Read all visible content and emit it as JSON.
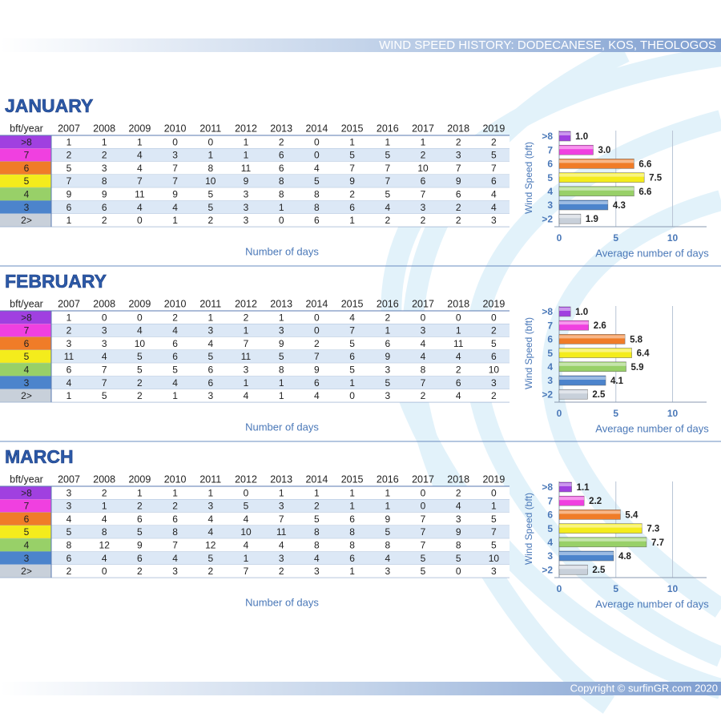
{
  "header": {
    "title": "WIND SPEED HISTORY: DODECANESE, KOS, THEOLOGOS"
  },
  "months": [
    {
      "title": "JANUARY",
      "caption": "Number of days",
      "table": {
        "header": [
          "bft/year",
          "2007",
          "2008",
          "2009",
          "2010",
          "2011",
          "2012",
          "2013",
          "2014",
          "2015",
          "2016",
          "2017",
          "2018",
          "2019"
        ],
        "rows": [
          [
            ">8",
            1,
            1,
            1,
            0,
            0,
            1,
            2,
            0,
            1,
            1,
            1,
            2,
            2
          ],
          [
            "7",
            2,
            2,
            4,
            3,
            1,
            1,
            6,
            0,
            5,
            5,
            2,
            3,
            5
          ],
          [
            "6",
            5,
            3,
            4,
            7,
            8,
            11,
            6,
            4,
            7,
            7,
            10,
            7,
            7
          ],
          [
            "5",
            7,
            8,
            7,
            7,
            10,
            9,
            8,
            5,
            9,
            7,
            6,
            9,
            6
          ],
          [
            "4",
            9,
            9,
            11,
            9,
            5,
            3,
            8,
            8,
            2,
            5,
            7,
            6,
            4
          ],
          [
            "3",
            6,
            6,
            4,
            4,
            5,
            3,
            1,
            8,
            6,
            4,
            3,
            2,
            4
          ],
          [
            "2>",
            1,
            2,
            0,
            1,
            2,
            3,
            0,
            6,
            1,
            2,
            2,
            2,
            3
          ]
        ]
      }
    },
    {
      "title": "FEBRUARY",
      "caption": "Number of days",
      "table": {
        "header": [
          "bft/year",
          "2007",
          "2008",
          "2009",
          "2010",
          "2011",
          "2012",
          "2013",
          "2014",
          "2015",
          "2016",
          "2017",
          "2018",
          "2019"
        ],
        "rows": [
          [
            ">8",
            1,
            0,
            0,
            2,
            1,
            2,
            1,
            0,
            4,
            2,
            0,
            0,
            0
          ],
          [
            "7",
            2,
            3,
            4,
            4,
            3,
            1,
            3,
            0,
            7,
            1,
            3,
            1,
            2
          ],
          [
            "6",
            3,
            3,
            10,
            6,
            4,
            7,
            9,
            2,
            5,
            6,
            4,
            11,
            5
          ],
          [
            "5",
            11,
            4,
            5,
            6,
            5,
            11,
            5,
            7,
            6,
            9,
            4,
            4,
            6
          ],
          [
            "4",
            6,
            7,
            5,
            5,
            6,
            3,
            8,
            9,
            5,
            3,
            8,
            2,
            10
          ],
          [
            "3",
            4,
            7,
            2,
            4,
            6,
            1,
            1,
            6,
            1,
            5,
            7,
            6,
            3
          ],
          [
            "2>",
            1,
            5,
            2,
            1,
            3,
            4,
            1,
            4,
            0,
            3,
            2,
            4,
            2
          ]
        ]
      }
    },
    {
      "title": "MARCH",
      "caption": "Number of days",
      "table": {
        "header": [
          "bft/year",
          "2007",
          "2008",
          "2009",
          "2010",
          "2011",
          "2012",
          "2013",
          "2014",
          "2015",
          "2016",
          "2017",
          "2018",
          "2019"
        ],
        "rows": [
          [
            ">8",
            3,
            2,
            1,
            1,
            1,
            0,
            1,
            1,
            1,
            1,
            0,
            2,
            0
          ],
          [
            "7",
            3,
            1,
            2,
            2,
            3,
            5,
            3,
            2,
            1,
            1,
            0,
            4,
            1
          ],
          [
            "6",
            4,
            4,
            6,
            6,
            4,
            4,
            7,
            5,
            6,
            9,
            7,
            3,
            5
          ],
          [
            "5",
            5,
            8,
            5,
            8,
            4,
            10,
            11,
            8,
            8,
            5,
            7,
            9,
            7
          ],
          [
            "4",
            8,
            12,
            9,
            7,
            12,
            4,
            4,
            8,
            8,
            8,
            7,
            8,
            5
          ],
          [
            "3",
            6,
            4,
            6,
            4,
            5,
            1,
            3,
            4,
            6,
            4,
            5,
            5,
            10
          ],
          [
            "2>",
            2,
            0,
            2,
            3,
            2,
            7,
            2,
            3,
            1,
            3,
            5,
            0,
            3
          ]
        ]
      }
    }
  ],
  "chart_data": [
    {
      "type": "bar",
      "orientation": "horizontal",
      "xlabel": "Average number of days",
      "ylabel": "Wind Speed (bft)",
      "categories": [
        ">8",
        "7",
        "6",
        "5",
        "4",
        "3",
        ">2"
      ],
      "values": [
        1.0,
        3.0,
        6.6,
        7.5,
        6.6,
        4.3,
        1.9
      ],
      "value_labels": [
        "1.0",
        "3.0",
        "6.6",
        "7.5",
        "6.6",
        "4.3",
        "1.9"
      ],
      "colors": [
        "#a040e0",
        "#f040e0",
        "#f07c28",
        "#f4ec1c",
        "#98d068",
        "#4c84cc",
        "#c8d0da"
      ],
      "xlim": [
        0,
        13
      ],
      "xticks": [
        0,
        5,
        10
      ],
      "grid": true
    },
    {
      "type": "bar",
      "orientation": "horizontal",
      "xlabel": "Average number of days",
      "ylabel": "Wind Speed (bft)",
      "categories": [
        ">8",
        "7",
        "6",
        "5",
        "4",
        "3",
        ">2"
      ],
      "values": [
        1.0,
        2.6,
        5.8,
        6.4,
        5.9,
        4.1,
        2.5
      ],
      "value_labels": [
        "1.0",
        "2.6",
        "5.8",
        "6.4",
        "5.9",
        "4.1",
        "2.5"
      ],
      "colors": [
        "#a040e0",
        "#f040e0",
        "#f07c28",
        "#f4ec1c",
        "#98d068",
        "#4c84cc",
        "#c8d0da"
      ],
      "xlim": [
        0,
        13
      ],
      "xticks": [
        0,
        5,
        10
      ],
      "grid": true
    },
    {
      "type": "bar",
      "orientation": "horizontal",
      "xlabel": "Average number of days",
      "ylabel": "Wind Speed (bft)",
      "categories": [
        ">8",
        "7",
        "6",
        "5",
        "4",
        "3",
        ">2"
      ],
      "values": [
        1.1,
        2.2,
        5.4,
        7.3,
        7.7,
        4.8,
        2.5
      ],
      "value_labels": [
        "1.1",
        "2.2",
        "5.4",
        "7.3",
        "7.7",
        "4.8",
        "2.5"
      ],
      "colors": [
        "#a040e0",
        "#f040e0",
        "#f07c28",
        "#f4ec1c",
        "#98d068",
        "#4c84cc",
        "#c8d0da"
      ],
      "xlim": [
        0,
        13
      ],
      "xticks": [
        0,
        5,
        10
      ],
      "grid": true
    }
  ],
  "footer": {
    "copyright": "Copyright © surfinGR.com 2020"
  }
}
